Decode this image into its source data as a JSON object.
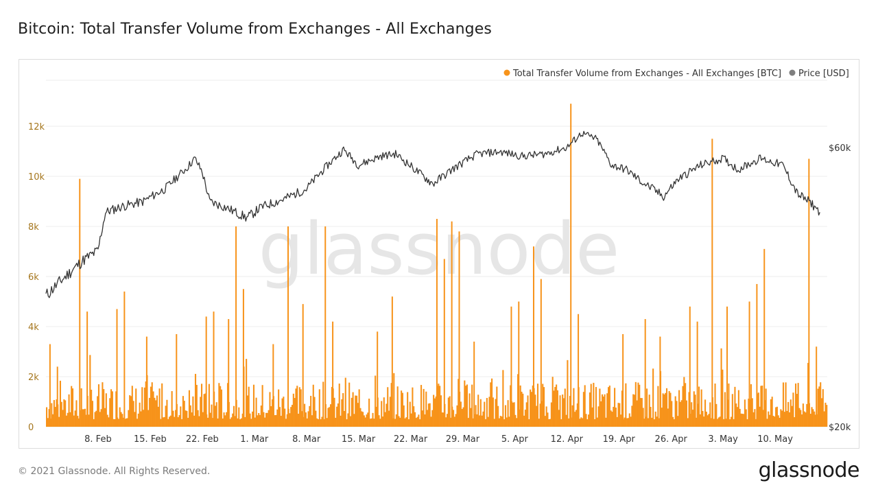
{
  "page": {
    "title": "Bitcoin: Total Transfer Volume from Exchanges - All Exchanges",
    "footer": "© 2021 Glassnode. All Rights Reserved.",
    "logo_text": "glassnode",
    "watermark": "glassnode"
  },
  "colors": {
    "volume": "#f7931a",
    "price": "#333333",
    "legend_price_dot": "#7f7f7f",
    "left_axis_text": "#a5761d",
    "grid": "#ececec"
  },
  "chart_data": {
    "type": "bar",
    "title": "Bitcoin: Total Transfer Volume from Exchanges - All Exchanges",
    "legend_position": "top-right",
    "grid": true,
    "x_ticks": [
      "8. Feb",
      "15. Feb",
      "22. Feb",
      "1. Mar",
      "8. Mar",
      "15. Mar",
      "22. Mar",
      "29. Mar",
      "5. Apr",
      "12. Apr",
      "19. Apr",
      "26. Apr",
      "3. May",
      "10. May"
    ],
    "x_range_days": [
      "2021-02-01",
      "2021-05-16"
    ],
    "left_axis": {
      "ticks": [
        "0",
        "2k",
        "4k",
        "6k",
        "8k",
        "10k",
        "12k"
      ],
      "ylim": [
        0,
        12000
      ]
    },
    "right_axis": {
      "ticks": [
        "$20k",
        "$60k"
      ],
      "scale": "log",
      "ylim": [
        20000,
        70000
      ]
    },
    "series": [
      {
        "name": "Total Transfer Volume from Exchanges - All Exchanges [BTC]",
        "axis": "left",
        "kind": "bar",
        "spikes": [
          [
            "2021-02-01",
            3300
          ],
          [
            "2021-02-02",
            2400
          ],
          [
            "2021-02-05",
            9900
          ],
          [
            "2021-02-06",
            4600
          ],
          [
            "2021-02-10",
            4700
          ],
          [
            "2021-02-11",
            5400
          ],
          [
            "2021-02-14",
            3600
          ],
          [
            "2021-02-18",
            3700
          ],
          [
            "2021-02-22",
            4400
          ],
          [
            "2021-02-23",
            4600
          ],
          [
            "2021-02-25",
            4300
          ],
          [
            "2021-02-26",
            8000
          ],
          [
            "2021-02-27",
            5500
          ],
          [
            "2021-03-03",
            3300
          ],
          [
            "2021-03-05",
            8000
          ],
          [
            "2021-03-07",
            4900
          ],
          [
            "2021-03-10",
            8000
          ],
          [
            "2021-03-11",
            4200
          ],
          [
            "2021-03-17",
            3800
          ],
          [
            "2021-03-19",
            5200
          ],
          [
            "2021-03-25",
            8300
          ],
          [
            "2021-03-26",
            6700
          ],
          [
            "2021-03-27",
            8200
          ],
          [
            "2021-03-28",
            7800
          ],
          [
            "2021-03-30",
            3400
          ],
          [
            "2021-04-04",
            4800
          ],
          [
            "2021-04-05",
            5000
          ],
          [
            "2021-04-07",
            7200
          ],
          [
            "2021-04-08",
            5900
          ],
          [
            "2021-04-12",
            12900
          ],
          [
            "2021-04-13",
            4500
          ],
          [
            "2021-04-19",
            3700
          ],
          [
            "2021-04-22",
            4300
          ],
          [
            "2021-04-24",
            3600
          ],
          [
            "2021-04-28",
            4800
          ],
          [
            "2021-04-29",
            4200
          ],
          [
            "2021-05-01",
            11500
          ],
          [
            "2021-05-03",
            4800
          ],
          [
            "2021-05-06",
            5000
          ],
          [
            "2021-05-07",
            5700
          ],
          [
            "2021-05-08",
            7100
          ],
          [
            "2021-05-14",
            10700
          ],
          [
            "2021-05-15",
            3200
          ]
        ],
        "typical_range": [
          300,
          1800
        ]
      },
      {
        "name": "Price [USD]",
        "axis": "right",
        "kind": "line",
        "points": [
          [
            "2021-02-01",
            33500
          ],
          [
            "2021-02-04",
            36500
          ],
          [
            "2021-02-06",
            38500
          ],
          [
            "2021-02-08",
            40000
          ],
          [
            "2021-02-09",
            46500
          ],
          [
            "2021-02-11",
            47500
          ],
          [
            "2021-02-14",
            48500
          ],
          [
            "2021-02-17",
            51000
          ],
          [
            "2021-02-20",
            55500
          ],
          [
            "2021-02-21",
            57500
          ],
          [
            "2021-02-22",
            54500
          ],
          [
            "2021-02-23",
            48500
          ],
          [
            "2021-02-25",
            47500
          ],
          [
            "2021-02-28",
            45500
          ],
          [
            "2021-03-02",
            47500
          ],
          [
            "2021-03-05",
            49000
          ],
          [
            "2021-03-08",
            51000
          ],
          [
            "2021-03-10",
            54500
          ],
          [
            "2021-03-13",
            59500
          ],
          [
            "2021-03-15",
            56000
          ],
          [
            "2021-03-18",
            58000
          ],
          [
            "2021-03-20",
            58500
          ],
          [
            "2021-03-23",
            54500
          ],
          [
            "2021-03-25",
            52000
          ],
          [
            "2021-03-28",
            55500
          ],
          [
            "2021-03-31",
            58500
          ],
          [
            "2021-04-03",
            59000
          ],
          [
            "2021-04-06",
            58000
          ],
          [
            "2021-04-09",
            58500
          ],
          [
            "2021-04-12",
            60000
          ],
          [
            "2021-04-14",
            63500
          ],
          [
            "2021-04-16",
            62000
          ],
          [
            "2021-04-18",
            56000
          ],
          [
            "2021-04-20",
            55000
          ],
          [
            "2021-04-22",
            52500
          ],
          [
            "2021-04-25",
            49500
          ],
          [
            "2021-04-27",
            53000
          ],
          [
            "2021-04-30",
            56000
          ],
          [
            "2021-05-03",
            57500
          ],
          [
            "2021-05-05",
            55000
          ],
          [
            "2021-05-08",
            57500
          ],
          [
            "2021-05-11",
            56000
          ],
          [
            "2021-05-13",
            50000
          ],
          [
            "2021-05-15",
            48000
          ],
          [
            "2021-05-16",
            46500
          ]
        ]
      }
    ]
  }
}
